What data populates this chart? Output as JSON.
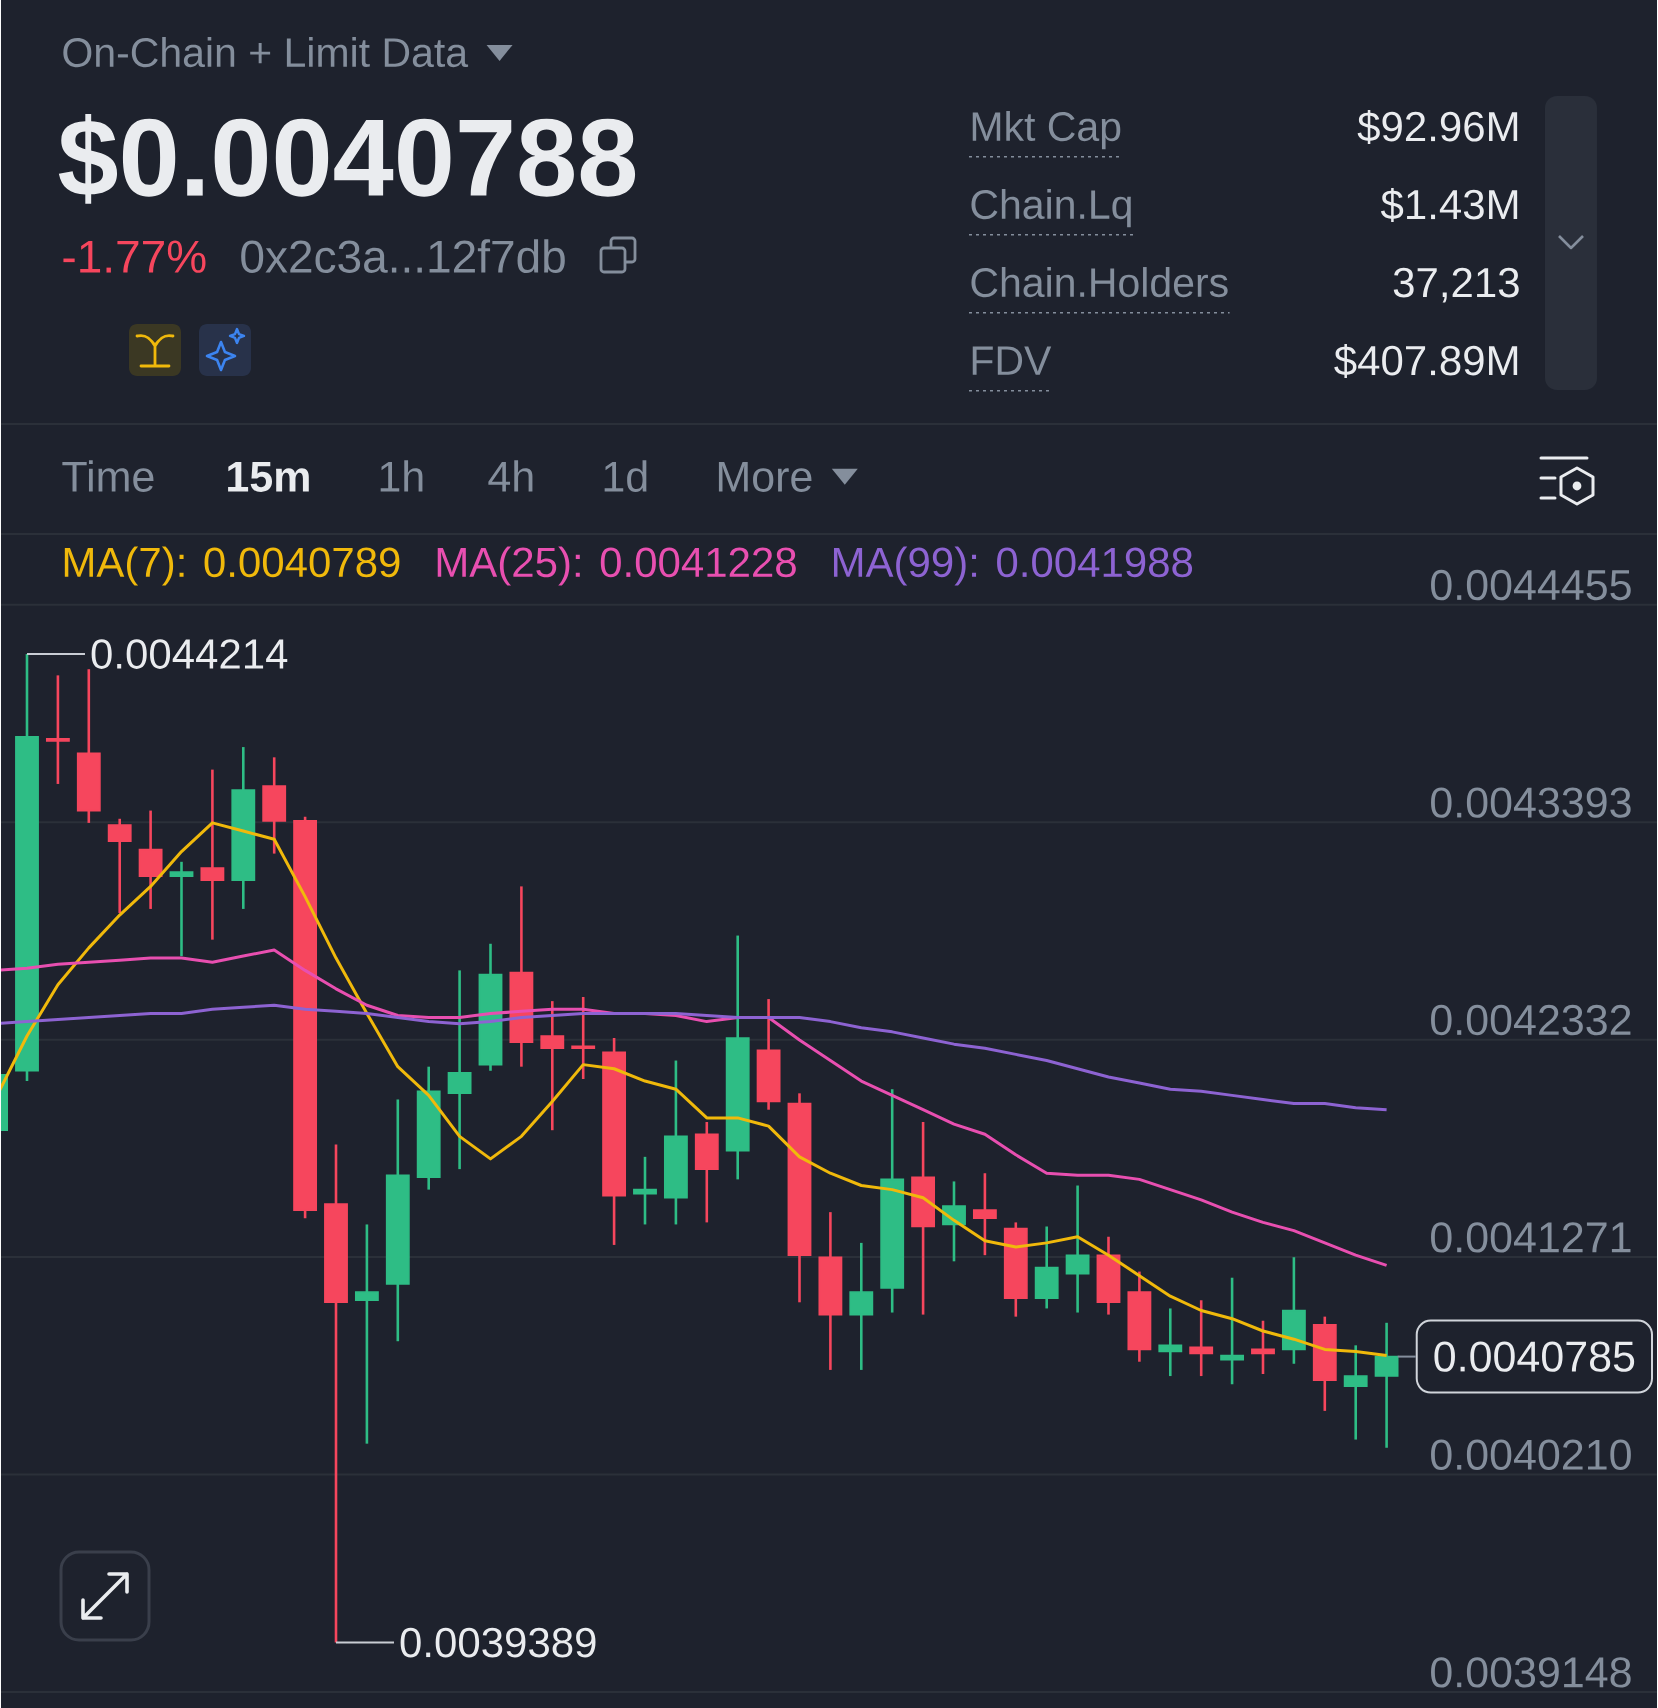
{
  "chart_data": [
    {
      "type": "other",
      "title": "On-Chain + Limit Data",
      "annotations": [
        "$0.0040788",
        "-1.77%",
        "0x2c3a...12f7db",
        "Mkt Cap",
        "$92.96M",
        "Chain.Lq",
        "$1.43M",
        "Chain.Holders",
        "37,213",
        "FDV",
        "$407.89M",
        "Time",
        "15m",
        "1h",
        "4h",
        "1d",
        "More"
      ]
    },
    {
      "type": "candlestick",
      "categories": [
        null,
        null,
        null,
        null,
        null,
        null,
        null,
        null,
        null,
        null,
        null,
        null,
        null,
        null,
        null,
        null,
        null,
        null,
        null,
        null,
        null,
        null,
        null,
        null,
        null,
        null,
        null,
        null,
        null,
        null,
        null,
        null,
        null,
        null,
        null,
        null,
        null,
        null,
        null,
        null,
        null,
        null,
        null,
        null,
        null,
        null
      ],
      "ohlc": [
        [
          0.004189,
          0.004216,
          0.004189,
          0.004216
        ],
        [
          0.004218,
          0.0044214,
          0.004213,
          0.004381
        ],
        [
          0.00438,
          0.004411,
          0.004358,
          0.004379
        ],
        [
          0.004373,
          0.004414,
          0.004339,
          0.004345
        ],
        [
          0.004338,
          0.004341,
          0.004295,
          0.00433
        ],
        [
          0.004326,
          0.004345,
          0.004297,
          0.004313
        ],
        [
          0.004313,
          0.00432,
          0.004274,
          0.004315
        ],
        [
          0.004317,
          0.004365,
          0.004282,
          0.004311
        ],
        [
          0.004311,
          0.004376,
          0.004297,
          0.004355
        ],
        [
          0.004357,
          0.004371,
          0.004324,
          0.00434
        ],
        [
          0.00434,
          0.004342,
          0.004146,
          0.00415
        ],
        [
          0.004153,
          0.004182,
          0.0039389,
          0.004105
        ],
        [
          0.004106,
          0.004143,
          0.004036,
          0.00411
        ],
        [
          0.004114,
          0.004204,
          0.004086,
          0.004167
        ],
        [
          0.004166,
          0.00422,
          0.00416,
          0.004208
        ],
        [
          0.004207,
          0.004267,
          0.00417,
          0.004217
        ],
        [
          0.004221,
          0.00428,
          0.004218,
          0.004265
        ],
        [
          0.004266,
          0.004308,
          0.00422,
          0.004232
        ],
        [
          0.004235,
          0.004252,
          0.004189,
          0.004229
        ],
        [
          0.00423,
          0.004254,
          0.004214,
          0.004229
        ],
        [
          0.004227,
          0.004234,
          0.004133,
          0.004157
        ],
        [
          0.004158,
          0.004176,
          0.004143,
          0.00416
        ],
        [
          0.004156,
          0.004223,
          0.004143,
          0.004186
        ],
        [
          0.004187,
          0.004193,
          0.004144,
          0.00417
        ],
        [
          0.004179,
          0.004284,
          0.004165,
          0.004234
        ],
        [
          0.004228,
          0.004253,
          0.004199,
          0.004203
        ],
        [
          0.004202,
          0.004207,
          0.004105,
          0.004128
        ],
        [
          0.004127,
          0.004149,
          0.004072,
          0.004099
        ],
        [
          0.004099,
          0.004134,
          0.004072,
          0.00411
        ],
        [
          0.004112,
          0.004209,
          0.0041,
          0.004165
        ],
        [
          0.004166,
          0.004193,
          0.004099,
          0.004142
        ],
        [
          0.004143,
          0.004164,
          0.004125,
          0.004152
        ],
        [
          0.00415,
          0.004168,
          0.004128,
          0.004146
        ],
        [
          0.004141,
          0.004144,
          0.004098,
          0.004107
        ],
        [
          0.004107,
          0.004142,
          0.004102,
          0.004122
        ],
        [
          0.004119,
          0.004162,
          0.0041,
          0.004128
        ],
        [
          0.004128,
          0.004137,
          0.004099,
          0.004105
        ],
        [
          0.00411,
          0.00412,
          0.004076,
          0.004082
        ],
        [
          0.004081,
          0.004102,
          0.004069,
          0.004084
        ],
        [
          0.004083,
          0.004106,
          0.004069,
          0.00408
        ],
        [
          0.004077,
          0.004117,
          0.004065,
          0.004079
        ],
        [
          0.004082,
          0.004096,
          0.00407,
          0.00408
        ],
        [
          0.004082,
          0.004127,
          0.004075,
          0.004101
        ],
        [
          0.004094,
          0.004098,
          0.004052,
          0.004067
        ],
        [
          0.004064,
          0.004084,
          0.004038,
          0.004069
        ],
        [
          0.004069,
          0.004095,
          0.004034,
          0.0040785
        ]
      ],
      "colors": [
        "#2ebd85",
        "#2ebd85",
        "#f6465d",
        "#f6465d",
        "#f6465d",
        "#f6465d",
        "#2ebd85",
        "#f6465d",
        "#2ebd85",
        "#f6465d",
        "#f6465d",
        "#f6465d",
        "#2ebd85",
        "#2ebd85",
        "#2ebd85",
        "#2ebd85",
        "#2ebd85",
        "#f6465d",
        "#f6465d",
        "#f6465d",
        "#f6465d",
        "#2ebd85",
        "#2ebd85",
        "#f6465d",
        "#2ebd85",
        "#f6465d",
        "#f6465d",
        "#f6465d",
        "#2ebd85",
        "#2ebd85",
        "#f6465d",
        "#2ebd85",
        "#f6465d",
        "#f6465d",
        "#2ebd85",
        "#2ebd85",
        "#f6465d",
        "#f6465d",
        "#2ebd85",
        "#f6465d",
        "#2ebd85",
        "#f6465d",
        "#2ebd85",
        "#f6465d",
        "#2ebd85",
        "#2ebd85"
      ],
      "series": [
        {
          "name": "MA(7): 0.0040789",
          "type": "line",
          "color": "#f0b90b",
          "values": [
            0.004205,
            0.004235,
            0.00426,
            0.004278,
            0.004294,
            0.004308,
            0.004325,
            0.004339,
            0.004335,
            0.004331,
            0.004303,
            0.004273,
            0.004246,
            0.00422,
            0.004206,
            0.004186,
            0.004175,
            0.004186,
            0.004203,
            0.004221,
            0.004219,
            0.004213,
            0.004209,
            0.004195,
            0.004195,
            0.004191,
            0.004176,
            0.004168,
            0.004162,
            0.00416,
            0.004156,
            0.004145,
            0.004135,
            0.004132,
            0.004134,
            0.004137,
            0.004128,
            0.004118,
            0.004108,
            0.004101,
            0.004097,
            0.004091,
            0.004087,
            0.004082,
            0.004081,
            0.004079
          ]
        },
        {
          "name": "MA(25): 0.0041228",
          "type": "line",
          "color": "#e84fb0",
          "values": [
            0.004267,
            0.004268,
            0.00427,
            0.004271,
            0.004272,
            0.004273,
            0.004273,
            0.004271,
            0.004274,
            0.004277,
            0.004267,
            0.004258,
            0.00425,
            0.004245,
            0.004244,
            0.004244,
            0.004246,
            0.004247,
            0.004248,
            0.004248,
            0.004246,
            0.004246,
            0.004245,
            0.004242,
            0.004244,
            0.004244,
            0.004233,
            0.004223,
            0.004213,
            0.004206,
            0.004199,
            0.004192,
            0.004187,
            0.004177,
            0.004168,
            0.004167,
            0.004167,
            0.004165,
            0.00416,
            0.004155,
            0.004149,
            0.004144,
            0.00414,
            0.004134,
            0.004128,
            0.004123
          ]
        },
        {
          "name": "MA(99): 0.0041988",
          "type": "line",
          "color": "#8d63d2",
          "values": [
            0.004241,
            0.004242,
            0.004243,
            0.004244,
            0.004245,
            0.004246,
            0.004246,
            0.004248,
            0.004249,
            0.00425,
            0.004248,
            0.004247,
            0.004246,
            0.004244,
            0.004242,
            0.004241,
            0.004242,
            0.004244,
            0.004245,
            0.004246,
            0.004246,
            0.004246,
            0.004246,
            0.004245,
            0.004244,
            0.004244,
            0.004244,
            0.004242,
            0.004239,
            0.004237,
            0.004234,
            0.004231,
            0.004229,
            0.004226,
            0.004223,
            0.004219,
            0.004215,
            0.004212,
            0.004209,
            0.004208,
            0.004206,
            0.004204,
            0.004202,
            0.004202,
            0.0042,
            0.004199
          ]
        }
      ],
      "ylim": [
        0.0039148,
        0.00448
      ],
      "yticks": [
        0.0044455,
        0.0043393,
        0.0042332,
        0.0041271,
        {
          "value": 0.004021,
          "label": "0.0040210"
        },
        0.0039148
      ],
      "grid": "y",
      "legend": "top left",
      "annotations": [
        "0.0044214",
        "0.0039389",
        "0.0040785"
      ]
    }
  ]
}
